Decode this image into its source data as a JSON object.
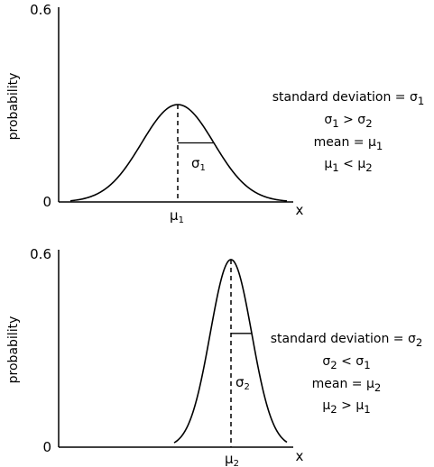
{
  "chart_data": [
    {
      "type": "line",
      "curve": "normal-distribution",
      "ylabel": "probability",
      "xlabel": "x",
      "ylim": [
        0,
        0.6
      ],
      "y_ticks": [
        "0",
        "0.6"
      ],
      "peak_probability": 0.3,
      "mean_label": "μ1",
      "sd_label": "σ1",
      "notes": [
        "standard deviation = σ1",
        "σ1 > σ2",
        "mean = μ1",
        "μ1 < μ2"
      ]
    },
    {
      "type": "line",
      "curve": "normal-distribution",
      "ylabel": "probability",
      "xlabel": "x",
      "ylim": [
        0,
        0.6
      ],
      "y_ticks": [
        "0",
        "0.6"
      ],
      "peak_probability": 0.57,
      "mean_label": "μ2",
      "sd_label": "σ2",
      "notes": [
        "standard deviation = σ2",
        "σ2 < σ1",
        "mean = μ2",
        "μ2 > μ1"
      ]
    }
  ]
}
